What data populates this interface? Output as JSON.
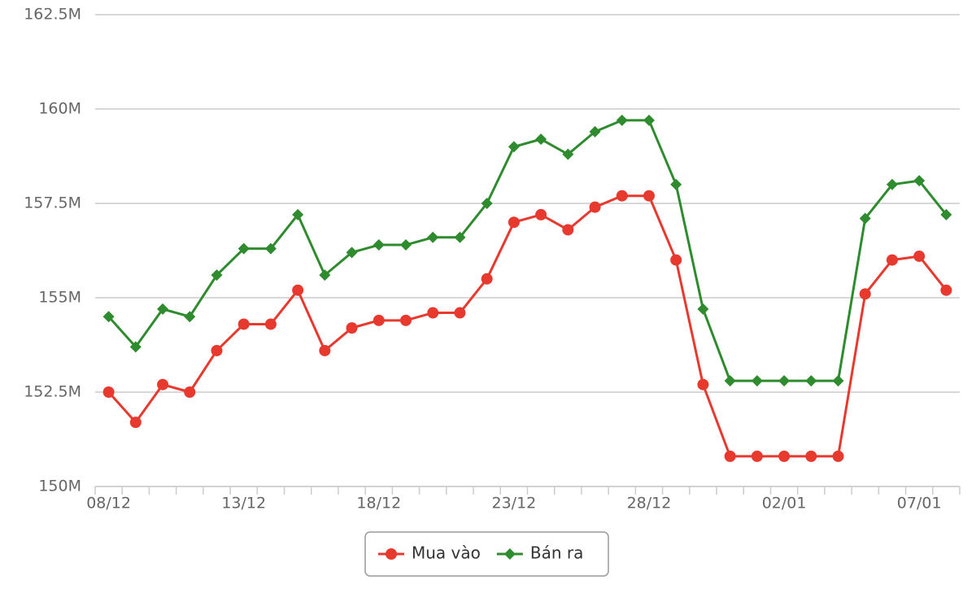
{
  "chart_data": {
    "type": "line",
    "categories": [
      "08/12",
      null,
      null,
      null,
      null,
      "13/12",
      null,
      null,
      null,
      null,
      "18/12",
      null,
      null,
      null,
      null,
      "23/12",
      null,
      null,
      null,
      null,
      "28/12",
      null,
      null,
      null,
      null,
      "02/01",
      null,
      null,
      null,
      null,
      "07/01",
      null
    ],
    "series": [
      {
        "name": "Mua vào",
        "color": "#e8392f",
        "marker": "circle",
        "values": [
          152.5,
          151.7,
          152.7,
          152.5,
          153.6,
          154.3,
          154.3,
          155.2,
          153.6,
          154.2,
          154.4,
          154.4,
          154.6,
          154.6,
          155.5,
          157.0,
          157.2,
          156.8,
          157.4,
          157.7,
          157.7,
          156.0,
          152.7,
          150.8,
          150.8,
          150.8,
          150.8,
          150.8,
          155.1,
          156.0,
          156.1,
          155.2
        ]
      },
      {
        "name": "Bán ra",
        "color": "#2e8b2e",
        "marker": "diamond",
        "values": [
          154.5,
          153.7,
          154.7,
          154.5,
          155.6,
          156.3,
          156.3,
          157.2,
          155.6,
          156.2,
          156.4,
          156.4,
          156.6,
          156.6,
          157.5,
          159.0,
          159.2,
          158.8,
          159.4,
          159.7,
          159.7,
          158.0,
          154.7,
          152.8,
          152.8,
          152.8,
          152.8,
          152.8,
          157.1,
          158.0,
          158.1,
          157.2
        ]
      }
    ],
    "ylim": [
      150,
      162.5
    ],
    "yticks": [
      {
        "value": 150,
        "label": "150M"
      },
      {
        "value": 152.5,
        "label": "152.5M"
      },
      {
        "value": 155,
        "label": "155M"
      },
      {
        "value": 157.5,
        "label": "157.5M"
      },
      {
        "value": 160,
        "label": "160M"
      },
      {
        "value": 162.5,
        "label": "162.5M"
      }
    ],
    "grid": true,
    "legend": "bottom"
  }
}
